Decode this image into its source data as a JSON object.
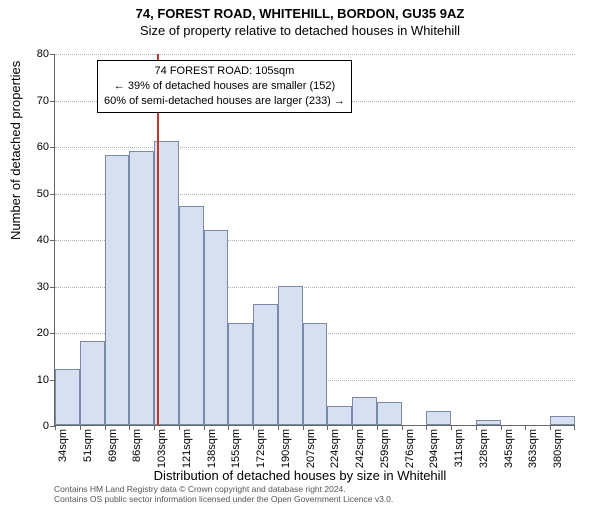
{
  "titles": {
    "main": "74, FOREST ROAD, WHITEHILL, BORDON, GU35 9AZ",
    "sub": "Size of property relative to detached houses in Whitehill"
  },
  "axes": {
    "ylabel": "Number of detached properties",
    "xlabel": "Distribution of detached houses by size in Whitehill",
    "ymax": 80,
    "ytick_step": 10,
    "yticks": [
      0,
      10,
      20,
      30,
      40,
      50,
      60,
      70,
      80
    ]
  },
  "style": {
    "bar_fill": "#d6e0f0",
    "bar_stroke": "#7a8aa8",
    "grid_color": "#b0b0b0",
    "axis_color": "#666666",
    "marker_color": "#c0392b",
    "bg": "#ffffff",
    "title_fontsize": 13,
    "label_fontsize": 13,
    "tick_fontsize": 11,
    "anno_fontsize": 11
  },
  "bars": {
    "xlabels": [
      "34sqm",
      "51sqm",
      "69sqm",
      "86sqm",
      "103sqm",
      "121sqm",
      "138sqm",
      "155sqm",
      "172sqm",
      "190sqm",
      "207sqm",
      "224sqm",
      "242sqm",
      "259sqm",
      "276sqm",
      "294sqm",
      "311sqm",
      "328sqm",
      "345sqm",
      "363sqm",
      "380sqm"
    ],
    "values": [
      12,
      18,
      58,
      59,
      61,
      47,
      42,
      22,
      26,
      30,
      22,
      4,
      6,
      5,
      0,
      3,
      0,
      1,
      0,
      0,
      2
    ]
  },
  "marker": {
    "sqm": 105,
    "x_range_start": 34,
    "x_range_end": 397
  },
  "annotation": {
    "line1": "74 FOREST ROAD: 105sqm",
    "line2": "← 39% of detached houses are smaller (152)",
    "line3": "60% of semi-detached houses are larger (233) →"
  },
  "footer": {
    "line1": "Contains HM Land Registry data © Crown copyright and database right 2024.",
    "line2": "Contains OS public sector information licensed under the Open Government Licence v3.0."
  }
}
